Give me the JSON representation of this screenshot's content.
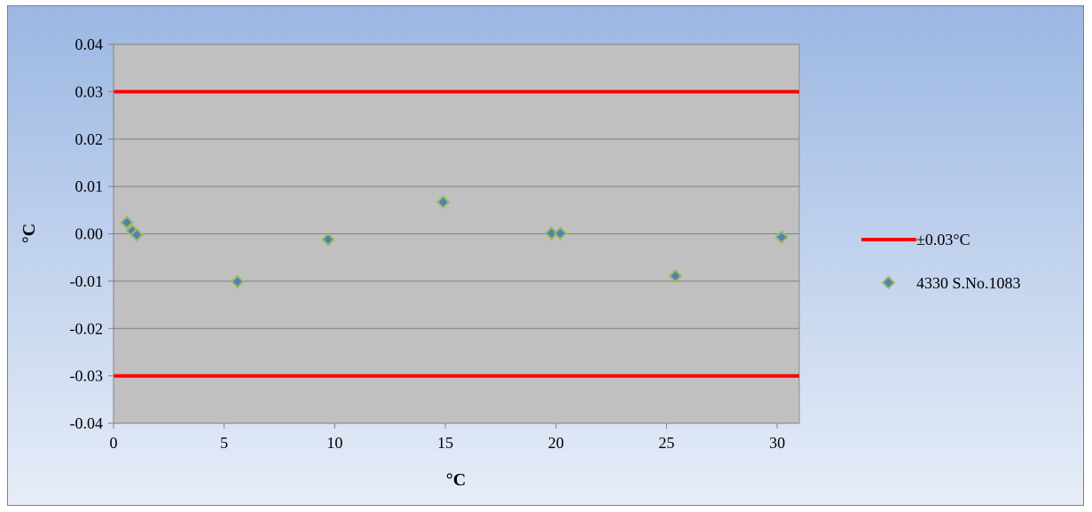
{
  "chart_data": {
    "type": "scatter",
    "title": "",
    "xlabel": "°C",
    "ylabel": "°C",
    "xlim": [
      0,
      31
    ],
    "ylim": [
      -0.04,
      0.04
    ],
    "x_ticks": [
      "0",
      "5",
      "10",
      "15",
      "20",
      "25",
      "30"
    ],
    "x_tick_values": [
      0,
      5,
      10,
      15,
      20,
      25,
      30
    ],
    "y_ticks": [
      "0.04",
      "0.03",
      "0.02",
      "0.01",
      "0.00",
      "-0.01",
      "-0.02",
      "-0.03",
      "-0.04"
    ],
    "y_tick_values": [
      0.04,
      0.03,
      0.02,
      0.01,
      0.0,
      -0.01,
      -0.02,
      -0.03,
      -0.04
    ],
    "grid": "horizontal",
    "legend_position": "right",
    "limits": {
      "name": "±0.03°C",
      "values": [
        0.03,
        -0.03
      ],
      "color": "#ff0000"
    },
    "series": [
      {
        "name": "4330 S.No.1083",
        "marker": "diamond",
        "color": "#4f81bd",
        "edge_color": "#9bbb59",
        "x": [
          0.6,
          0.85,
          1.05,
          5.6,
          9.7,
          14.9,
          19.8,
          20.2,
          25.4,
          30.2
        ],
        "y": [
          0.0024,
          0.0006,
          -0.0002,
          -0.0101,
          -0.0012,
          0.0067,
          0.0001,
          0.0001,
          -0.0089,
          -0.0007
        ]
      }
    ],
    "plot_background": "#c0c0c0"
  }
}
